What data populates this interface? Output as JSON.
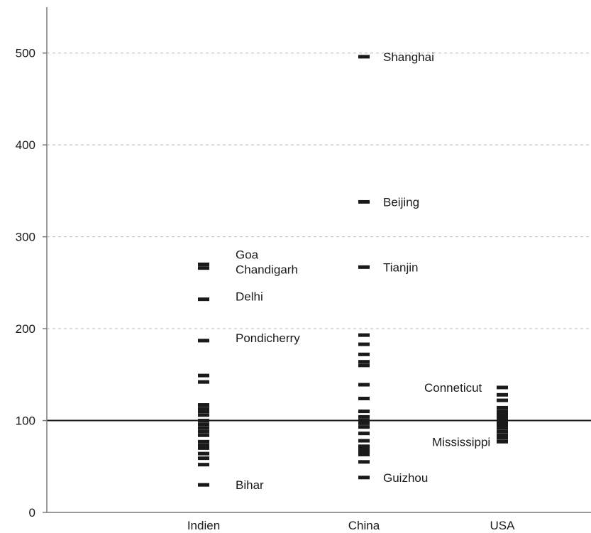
{
  "chart_data": {
    "type": "scatter",
    "title": "",
    "xlabel": "",
    "ylabel": "",
    "categories": [
      "Indien",
      "China",
      "USA"
    ],
    "ylim": [
      0,
      550
    ],
    "yticks": [
      0,
      100,
      200,
      300,
      400,
      500
    ],
    "ytick_labels": [
      "0",
      "100",
      "200",
      "300",
      "400",
      "500"
    ],
    "grid": "horizontal-dashed",
    "reference_line": 100,
    "series": [
      {
        "category": "Indien",
        "values": [
          270,
          266,
          232,
          187,
          149,
          142,
          117,
          113,
          110,
          106,
          100,
          96,
          92,
          88,
          84,
          77,
          73,
          70,
          64,
          59,
          52,
          30
        ]
      },
      {
        "category": "China",
        "values": [
          496,
          338,
          267,
          193,
          183,
          172,
          164,
          160,
          139,
          124,
          110,
          104,
          100,
          97,
          93,
          86,
          78,
          72,
          70,
          68,
          66,
          63,
          55,
          38
        ]
      },
      {
        "category": "USA",
        "values": [
          136,
          128,
          122,
          114,
          110,
          107,
          104,
          101,
          98,
          95,
          92,
          88,
          84,
          81,
          77
        ]
      }
    ],
    "annotations": [
      {
        "category": "Indien",
        "text": "Goa",
        "value": 270
      },
      {
        "category": "Indien",
        "text": "Chandigarh",
        "value": 266
      },
      {
        "category": "Indien",
        "text": "Delhi",
        "value": 232
      },
      {
        "category": "Indien",
        "text": "Pondicherry",
        "value": 187
      },
      {
        "category": "Indien",
        "text": "Bihar",
        "value": 30
      },
      {
        "category": "China",
        "text": "Shanghai",
        "value": 496
      },
      {
        "category": "China",
        "text": "Beijing",
        "value": 338
      },
      {
        "category": "China",
        "text": "Tianjin",
        "value": 267
      },
      {
        "category": "China",
        "text": "Guizhou",
        "value": 38
      },
      {
        "category": "USA",
        "text": "Conneticut",
        "value": 136
      },
      {
        "category": "USA",
        "text": "Mississippi",
        "value": 77
      }
    ]
  }
}
